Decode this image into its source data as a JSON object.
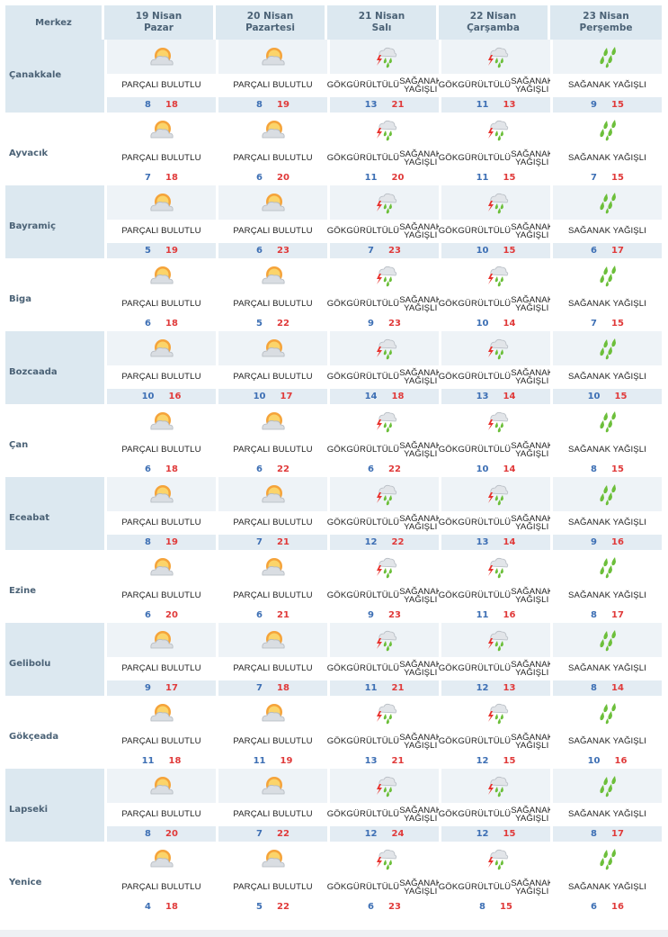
{
  "header": {
    "merkez_label": "Merkez",
    "days": [
      {
        "date": "19 Nisan",
        "weekday": "Pazar"
      },
      {
        "date": "20 Nisan",
        "weekday": "Pazartesi"
      },
      {
        "date": "21 Nisan",
        "weekday": "Salı"
      },
      {
        "date": "22 Nisan",
        "weekday": "Çarşamba"
      },
      {
        "date": "23 Nisan",
        "weekday": "Perşembe"
      }
    ]
  },
  "condition_labels": {
    "partly_cloudy": [
      "PARÇALI BULUTLU"
    ],
    "thunder_showers": [
      "GÖKGÜRÜLTÜLÜ",
      "SAĞANAK YAĞIŞLI"
    ],
    "showers": [
      "SAĞANAK YAĞIŞLI"
    ]
  },
  "icons": {
    "partly_cloudy": "sun-behind-cloud-icon",
    "thunder_showers": "thunder-rain-icon",
    "showers": "rain-drops-icon"
  },
  "colors": {
    "header_bg": "#dce8f0",
    "temp_min": "#3d6fb4",
    "temp_max": "#e03a3a",
    "city_text": "#4b6276"
  },
  "cities": [
    {
      "name": "Çanakkale",
      "days": [
        {
          "cond": "partly_cloudy",
          "min": "8",
          "max": "18"
        },
        {
          "cond": "partly_cloudy",
          "min": "8",
          "max": "19"
        },
        {
          "cond": "thunder_showers",
          "min": "13",
          "max": "21"
        },
        {
          "cond": "thunder_showers",
          "min": "11",
          "max": "13"
        },
        {
          "cond": "showers",
          "min": "9",
          "max": "15"
        }
      ]
    },
    {
      "name": "Ayvacık",
      "days": [
        {
          "cond": "partly_cloudy",
          "min": "7",
          "max": "18"
        },
        {
          "cond": "partly_cloudy",
          "min": "6",
          "max": "20"
        },
        {
          "cond": "thunder_showers",
          "min": "11",
          "max": "20"
        },
        {
          "cond": "thunder_showers",
          "min": "11",
          "max": "15"
        },
        {
          "cond": "showers",
          "min": "7",
          "max": "15"
        }
      ]
    },
    {
      "name": "Bayramiç",
      "days": [
        {
          "cond": "partly_cloudy",
          "min": "5",
          "max": "19"
        },
        {
          "cond": "partly_cloudy",
          "min": "6",
          "max": "23"
        },
        {
          "cond": "thunder_showers",
          "min": "7",
          "max": "23"
        },
        {
          "cond": "thunder_showers",
          "min": "10",
          "max": "15"
        },
        {
          "cond": "showers",
          "min": "6",
          "max": "17"
        }
      ]
    },
    {
      "name": "Biga",
      "days": [
        {
          "cond": "partly_cloudy",
          "min": "6",
          "max": "18"
        },
        {
          "cond": "partly_cloudy",
          "min": "5",
          "max": "22"
        },
        {
          "cond": "thunder_showers",
          "min": "9",
          "max": "23"
        },
        {
          "cond": "thunder_showers",
          "min": "10",
          "max": "14"
        },
        {
          "cond": "showers",
          "min": "7",
          "max": "15"
        }
      ]
    },
    {
      "name": "Bozcaada",
      "days": [
        {
          "cond": "partly_cloudy",
          "min": "10",
          "max": "16"
        },
        {
          "cond": "partly_cloudy",
          "min": "10",
          "max": "17"
        },
        {
          "cond": "thunder_showers",
          "min": "14",
          "max": "18"
        },
        {
          "cond": "thunder_showers",
          "min": "13",
          "max": "14"
        },
        {
          "cond": "showers",
          "min": "10",
          "max": "15"
        }
      ]
    },
    {
      "name": "Çan",
      "days": [
        {
          "cond": "partly_cloudy",
          "min": "6",
          "max": "18"
        },
        {
          "cond": "partly_cloudy",
          "min": "6",
          "max": "22"
        },
        {
          "cond": "thunder_showers",
          "min": "6",
          "max": "22"
        },
        {
          "cond": "thunder_showers",
          "min": "10",
          "max": "14"
        },
        {
          "cond": "showers",
          "min": "8",
          "max": "15"
        }
      ]
    },
    {
      "name": "Eceabat",
      "days": [
        {
          "cond": "partly_cloudy",
          "min": "8",
          "max": "19"
        },
        {
          "cond": "partly_cloudy",
          "min": "7",
          "max": "21"
        },
        {
          "cond": "thunder_showers",
          "min": "12",
          "max": "22"
        },
        {
          "cond": "thunder_showers",
          "min": "13",
          "max": "14"
        },
        {
          "cond": "showers",
          "min": "9",
          "max": "16"
        }
      ]
    },
    {
      "name": "Ezine",
      "days": [
        {
          "cond": "partly_cloudy",
          "min": "6",
          "max": "20"
        },
        {
          "cond": "partly_cloudy",
          "min": "6",
          "max": "21"
        },
        {
          "cond": "thunder_showers",
          "min": "9",
          "max": "23"
        },
        {
          "cond": "thunder_showers",
          "min": "11",
          "max": "16"
        },
        {
          "cond": "showers",
          "min": "8",
          "max": "17"
        }
      ]
    },
    {
      "name": "Gelibolu",
      "days": [
        {
          "cond": "partly_cloudy",
          "min": "9",
          "max": "17"
        },
        {
          "cond": "partly_cloudy",
          "min": "7",
          "max": "18"
        },
        {
          "cond": "thunder_showers",
          "min": "11",
          "max": "21"
        },
        {
          "cond": "thunder_showers",
          "min": "12",
          "max": "13"
        },
        {
          "cond": "showers",
          "min": "8",
          "max": "14"
        }
      ]
    },
    {
      "name": "Gökçeada",
      "days": [
        {
          "cond": "partly_cloudy",
          "min": "11",
          "max": "18"
        },
        {
          "cond": "partly_cloudy",
          "min": "11",
          "max": "19"
        },
        {
          "cond": "thunder_showers",
          "min": "13",
          "max": "21"
        },
        {
          "cond": "thunder_showers",
          "min": "12",
          "max": "15"
        },
        {
          "cond": "showers",
          "min": "10",
          "max": "16"
        }
      ]
    },
    {
      "name": "Lapseki",
      "days": [
        {
          "cond": "partly_cloudy",
          "min": "8",
          "max": "20"
        },
        {
          "cond": "partly_cloudy",
          "min": "7",
          "max": "22"
        },
        {
          "cond": "thunder_showers",
          "min": "12",
          "max": "24"
        },
        {
          "cond": "thunder_showers",
          "min": "12",
          "max": "15"
        },
        {
          "cond": "showers",
          "min": "8",
          "max": "17"
        }
      ]
    },
    {
      "name": "Yenice",
      "days": [
        {
          "cond": "partly_cloudy",
          "min": "4",
          "max": "18"
        },
        {
          "cond": "partly_cloudy",
          "min": "5",
          "max": "22"
        },
        {
          "cond": "thunder_showers",
          "min": "6",
          "max": "23"
        },
        {
          "cond": "thunder_showers",
          "min": "8",
          "max": "15"
        },
        {
          "cond": "showers",
          "min": "6",
          "max": "16"
        }
      ]
    }
  ]
}
